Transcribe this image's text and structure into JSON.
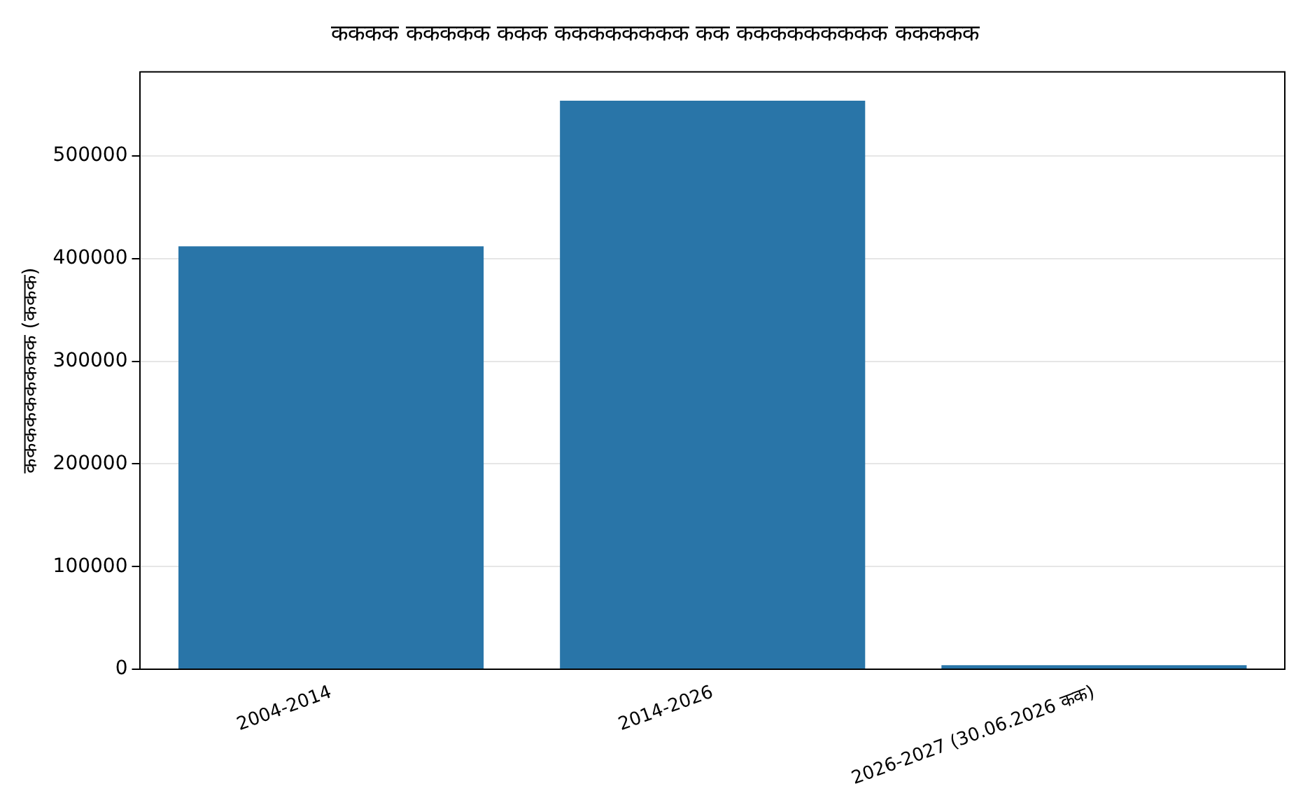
{
  "chart_data": {
    "type": "bar",
    "title": "कककक ककककक ककक कककककककक कक ककककककककक ककककक",
    "ylabel": "ककककककककक (ककक)",
    "categories": [
      "2004-2014",
      "2014-2026",
      "2026-2027 (30.06.2026 कक)"
    ],
    "values": [
      412000,
      554000,
      4000
    ],
    "color": "#2975a8",
    "ylim": [
      0,
      582000
    ],
    "yticks": [
      0,
      100000,
      200000,
      300000,
      400000,
      500000
    ],
    "grid": "y",
    "legend": false
  }
}
